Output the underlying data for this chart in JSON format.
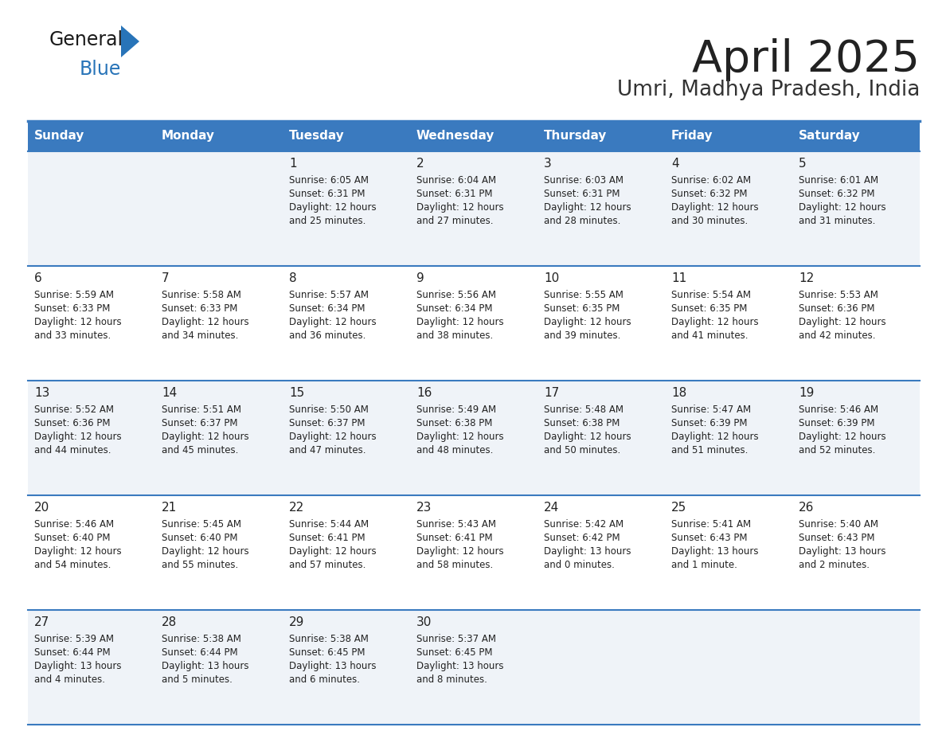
{
  "title": "April 2025",
  "subtitle": "Umri, Madhya Pradesh, India",
  "header_bg_color": "#3a7abf",
  "header_text_color": "#ffffff",
  "row_bg_odd": "#eff3f8",
  "row_bg_even": "#ffffff",
  "border_color": "#3a7abf",
  "day_names": [
    "Sunday",
    "Monday",
    "Tuesday",
    "Wednesday",
    "Thursday",
    "Friday",
    "Saturday"
  ],
  "title_color": "#222222",
  "subtitle_color": "#333333",
  "cell_text_color": "#222222",
  "days": [
    {
      "day": 1,
      "col": 2,
      "row": 0,
      "sunrise": "6:05 AM",
      "sunset": "6:31 PM",
      "daylight_line1": "Daylight: 12 hours",
      "daylight_line2": "and 25 minutes."
    },
    {
      "day": 2,
      "col": 3,
      "row": 0,
      "sunrise": "6:04 AM",
      "sunset": "6:31 PM",
      "daylight_line1": "Daylight: 12 hours",
      "daylight_line2": "and 27 minutes."
    },
    {
      "day": 3,
      "col": 4,
      "row": 0,
      "sunrise": "6:03 AM",
      "sunset": "6:31 PM",
      "daylight_line1": "Daylight: 12 hours",
      "daylight_line2": "and 28 minutes."
    },
    {
      "day": 4,
      "col": 5,
      "row": 0,
      "sunrise": "6:02 AM",
      "sunset": "6:32 PM",
      "daylight_line1": "Daylight: 12 hours",
      "daylight_line2": "and 30 minutes."
    },
    {
      "day": 5,
      "col": 6,
      "row": 0,
      "sunrise": "6:01 AM",
      "sunset": "6:32 PM",
      "daylight_line1": "Daylight: 12 hours",
      "daylight_line2": "and 31 minutes."
    },
    {
      "day": 6,
      "col": 0,
      "row": 1,
      "sunrise": "5:59 AM",
      "sunset": "6:33 PM",
      "daylight_line1": "Daylight: 12 hours",
      "daylight_line2": "and 33 minutes."
    },
    {
      "day": 7,
      "col": 1,
      "row": 1,
      "sunrise": "5:58 AM",
      "sunset": "6:33 PM",
      "daylight_line1": "Daylight: 12 hours",
      "daylight_line2": "and 34 minutes."
    },
    {
      "day": 8,
      "col": 2,
      "row": 1,
      "sunrise": "5:57 AM",
      "sunset": "6:34 PM",
      "daylight_line1": "Daylight: 12 hours",
      "daylight_line2": "and 36 minutes."
    },
    {
      "day": 9,
      "col": 3,
      "row": 1,
      "sunrise": "5:56 AM",
      "sunset": "6:34 PM",
      "daylight_line1": "Daylight: 12 hours",
      "daylight_line2": "and 38 minutes."
    },
    {
      "day": 10,
      "col": 4,
      "row": 1,
      "sunrise": "5:55 AM",
      "sunset": "6:35 PM",
      "daylight_line1": "Daylight: 12 hours",
      "daylight_line2": "and 39 minutes."
    },
    {
      "day": 11,
      "col": 5,
      "row": 1,
      "sunrise": "5:54 AM",
      "sunset": "6:35 PM",
      "daylight_line1": "Daylight: 12 hours",
      "daylight_line2": "and 41 minutes."
    },
    {
      "day": 12,
      "col": 6,
      "row": 1,
      "sunrise": "5:53 AM",
      "sunset": "6:36 PM",
      "daylight_line1": "Daylight: 12 hours",
      "daylight_line2": "and 42 minutes."
    },
    {
      "day": 13,
      "col": 0,
      "row": 2,
      "sunrise": "5:52 AM",
      "sunset": "6:36 PM",
      "daylight_line1": "Daylight: 12 hours",
      "daylight_line2": "and 44 minutes."
    },
    {
      "day": 14,
      "col": 1,
      "row": 2,
      "sunrise": "5:51 AM",
      "sunset": "6:37 PM",
      "daylight_line1": "Daylight: 12 hours",
      "daylight_line2": "and 45 minutes."
    },
    {
      "day": 15,
      "col": 2,
      "row": 2,
      "sunrise": "5:50 AM",
      "sunset": "6:37 PM",
      "daylight_line1": "Daylight: 12 hours",
      "daylight_line2": "and 47 minutes."
    },
    {
      "day": 16,
      "col": 3,
      "row": 2,
      "sunrise": "5:49 AM",
      "sunset": "6:38 PM",
      "daylight_line1": "Daylight: 12 hours",
      "daylight_line2": "and 48 minutes."
    },
    {
      "day": 17,
      "col": 4,
      "row": 2,
      "sunrise": "5:48 AM",
      "sunset": "6:38 PM",
      "daylight_line1": "Daylight: 12 hours",
      "daylight_line2": "and 50 minutes."
    },
    {
      "day": 18,
      "col": 5,
      "row": 2,
      "sunrise": "5:47 AM",
      "sunset": "6:39 PM",
      "daylight_line1": "Daylight: 12 hours",
      "daylight_line2": "and 51 minutes."
    },
    {
      "day": 19,
      "col": 6,
      "row": 2,
      "sunrise": "5:46 AM",
      "sunset": "6:39 PM",
      "daylight_line1": "Daylight: 12 hours",
      "daylight_line2": "and 52 minutes."
    },
    {
      "day": 20,
      "col": 0,
      "row": 3,
      "sunrise": "5:46 AM",
      "sunset": "6:40 PM",
      "daylight_line1": "Daylight: 12 hours",
      "daylight_line2": "and 54 minutes."
    },
    {
      "day": 21,
      "col": 1,
      "row": 3,
      "sunrise": "5:45 AM",
      "sunset": "6:40 PM",
      "daylight_line1": "Daylight: 12 hours",
      "daylight_line2": "and 55 minutes."
    },
    {
      "day": 22,
      "col": 2,
      "row": 3,
      "sunrise": "5:44 AM",
      "sunset": "6:41 PM",
      "daylight_line1": "Daylight: 12 hours",
      "daylight_line2": "and 57 minutes."
    },
    {
      "day": 23,
      "col": 3,
      "row": 3,
      "sunrise": "5:43 AM",
      "sunset": "6:41 PM",
      "daylight_line1": "Daylight: 12 hours",
      "daylight_line2": "and 58 minutes."
    },
    {
      "day": 24,
      "col": 4,
      "row": 3,
      "sunrise": "5:42 AM",
      "sunset": "6:42 PM",
      "daylight_line1": "Daylight: 13 hours",
      "daylight_line2": "and 0 minutes."
    },
    {
      "day": 25,
      "col": 5,
      "row": 3,
      "sunrise": "5:41 AM",
      "sunset": "6:43 PM",
      "daylight_line1": "Daylight: 13 hours",
      "daylight_line2": "and 1 minute."
    },
    {
      "day": 26,
      "col": 6,
      "row": 3,
      "sunrise": "5:40 AM",
      "sunset": "6:43 PM",
      "daylight_line1": "Daylight: 13 hours",
      "daylight_line2": "and 2 minutes."
    },
    {
      "day": 27,
      "col": 0,
      "row": 4,
      "sunrise": "5:39 AM",
      "sunset": "6:44 PM",
      "daylight_line1": "Daylight: 13 hours",
      "daylight_line2": "and 4 minutes."
    },
    {
      "day": 28,
      "col": 1,
      "row": 4,
      "sunrise": "5:38 AM",
      "sunset": "6:44 PM",
      "daylight_line1": "Daylight: 13 hours",
      "daylight_line2": "and 5 minutes."
    },
    {
      "day": 29,
      "col": 2,
      "row": 4,
      "sunrise": "5:38 AM",
      "sunset": "6:45 PM",
      "daylight_line1": "Daylight: 13 hours",
      "daylight_line2": "and 6 minutes."
    },
    {
      "day": 30,
      "col": 3,
      "row": 4,
      "sunrise": "5:37 AM",
      "sunset": "6:45 PM",
      "daylight_line1": "Daylight: 13 hours",
      "daylight_line2": "and 8 minutes."
    }
  ],
  "num_rows": 5,
  "num_cols": 7,
  "logo_text1": "General",
  "logo_text2": "Blue",
  "logo_text1_color": "#1a1a1a",
  "logo_text2_color": "#2874b8",
  "logo_triangle_color": "#2874b8"
}
